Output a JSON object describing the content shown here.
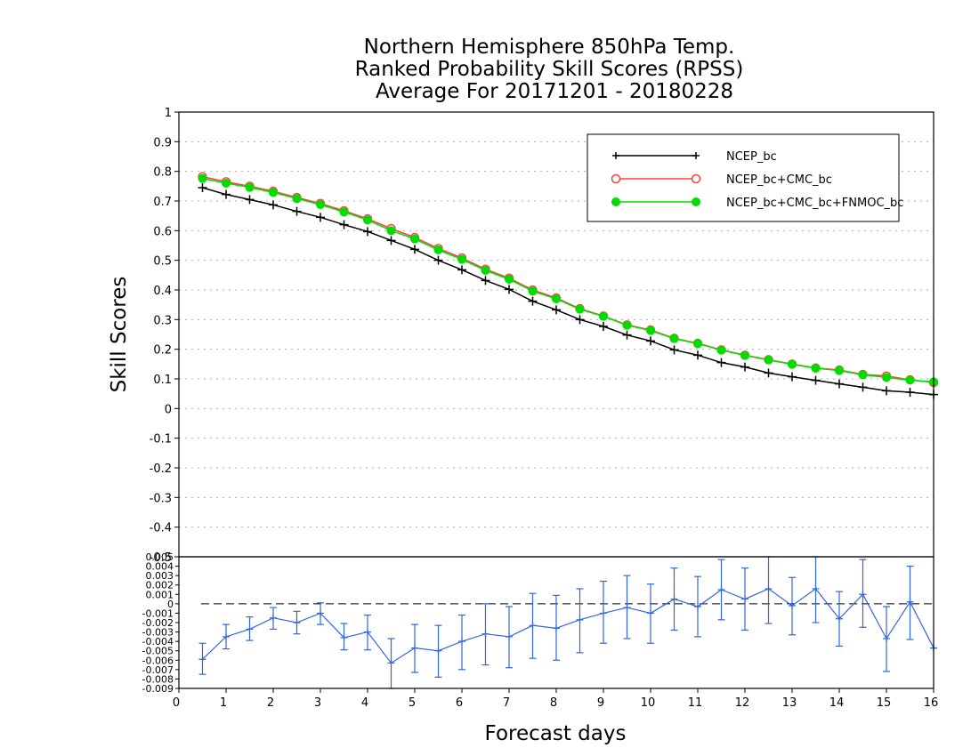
{
  "chart_data": [
    {
      "type": "line",
      "title": [
        "Northern Hemisphere 850hPa Temp.",
        "Ranked Probability Skill Scores (RPSS)",
        "Average For 20171201 - 20180228"
      ],
      "ylabel": "Skill Scores",
      "xlim": [
        0,
        16
      ],
      "ylim": [
        -0.5,
        1
      ],
      "yticks": [
        "1",
        "0.9",
        "0.8",
        "0.7",
        "0.6",
        "0.5",
        "0.4",
        "0.3",
        "0.2",
        "0.1",
        "0",
        "-0.1",
        "-0.2",
        "-0.3",
        "-0.4",
        "-0.5"
      ],
      "grid": true,
      "legend_position": "top-right",
      "x": [
        0.5,
        1,
        1.5,
        2,
        2.5,
        3,
        3.5,
        4,
        4.5,
        5,
        5.5,
        6,
        6.5,
        7,
        7.5,
        8,
        8.5,
        9,
        9.5,
        10,
        10.5,
        11,
        11.5,
        12,
        12.5,
        13,
        13.5,
        14,
        14.5,
        15,
        15.5,
        16
      ],
      "series": [
        {
          "name": "NCEP_bc",
          "color": "#000000",
          "marker": "plus",
          "values": [
            0.745,
            0.722,
            0.705,
            0.687,
            0.665,
            0.645,
            0.62,
            0.597,
            0.567,
            0.537,
            0.5,
            0.468,
            0.432,
            0.402,
            0.362,
            0.333,
            0.3,
            0.277,
            0.248,
            0.228,
            0.198,
            0.18,
            0.155,
            0.14,
            0.12,
            0.107,
            0.095,
            0.083,
            0.072,
            0.06,
            0.055,
            0.047
          ]
        },
        {
          "name": "NCEP_bc+CMC_bc",
          "color": "#ff4040",
          "marker": "open-circle",
          "values": [
            0.782,
            0.765,
            0.75,
            0.733,
            0.712,
            0.692,
            0.667,
            0.64,
            0.607,
            0.577,
            0.54,
            0.508,
            0.47,
            0.44,
            0.4,
            0.373,
            0.337,
            0.312,
            0.282,
            0.265,
            0.237,
            0.22,
            0.198,
            0.18,
            0.165,
            0.15,
            0.137,
            0.13,
            0.115,
            0.11,
            0.097,
            0.088
          ]
        },
        {
          "name": "NCEP_bc+CMC_bc+FNMOC_bc",
          "color": "#00dd00",
          "marker": "filled-circle",
          "values": [
            0.776,
            0.76,
            0.746,
            0.729,
            0.708,
            0.688,
            0.663,
            0.636,
            0.6,
            0.572,
            0.535,
            0.503,
            0.466,
            0.436,
            0.396,
            0.37,
            0.335,
            0.311,
            0.281,
            0.263,
            0.236,
            0.219,
            0.197,
            0.179,
            0.164,
            0.149,
            0.136,
            0.128,
            0.114,
            0.105,
            0.096,
            0.09
          ]
        }
      ]
    },
    {
      "type": "line",
      "xlabel": "Forecast days",
      "xlim": [
        0,
        16
      ],
      "ylim": [
        -0.009,
        0.005
      ],
      "xticks": [
        "0",
        "1",
        "2",
        "3",
        "4",
        "5",
        "6",
        "7",
        "8",
        "9",
        "10",
        "11",
        "12",
        "13",
        "14",
        "15",
        "16"
      ],
      "yticks": [
        "0.005",
        "0.004",
        "0.003",
        "0.002",
        "0.001",
        "0",
        "-0.001",
        "-0.002",
        "-0.003",
        "-0.004",
        "-0.005",
        "-0.006",
        "-0.007",
        "-0.008",
        "-0.009"
      ],
      "reference_line": 0,
      "color": "#3366dd",
      "x": [
        0.5,
        1,
        1.5,
        2,
        2.5,
        3,
        3.5,
        4,
        4.5,
        5,
        5.5,
        6,
        6.5,
        7,
        7.5,
        8,
        8.5,
        9,
        9.5,
        10,
        10.5,
        11,
        11.5,
        12,
        12.5,
        13,
        13.5,
        14,
        14.5,
        15,
        15.5,
        16
      ],
      "values": [
        -0.0059,
        -0.0035,
        -0.0027,
        -0.0015,
        -0.002,
        -0.001,
        -0.0036,
        -0.003,
        -0.0063,
        -0.0047,
        -0.005,
        -0.004,
        -0.0032,
        -0.0035,
        -0.0023,
        -0.0026,
        -0.0017,
        -0.001,
        -0.0004,
        -0.001,
        0.0005,
        -0.0003,
        0.0015,
        0.0005,
        0.0016,
        -0.0002,
        0.0016,
        -0.0016,
        0.001,
        -0.0037,
        0.0002,
        -0.0047
      ],
      "err_low": [
        -0.0075,
        -0.0048,
        -0.0039,
        -0.0027,
        -0.0032,
        -0.0022,
        -0.0049,
        -0.0049,
        -0.009,
        -0.0073,
        -0.0078,
        -0.007,
        -0.0065,
        -0.0068,
        -0.0058,
        -0.006,
        -0.0052,
        -0.0042,
        -0.0037,
        -0.0042,
        -0.0028,
        -0.0035,
        -0.0017,
        -0.0028,
        -0.0021,
        -0.0033,
        -0.002,
        -0.0045,
        -0.0025,
        -0.0072,
        -0.0038,
        -0.0047
      ],
      "err_high": [
        -0.0042,
        -0.0022,
        -0.0014,
        -0.0004,
        -0.0008,
        0.0001,
        -0.0021,
        -0.0012,
        -0.0037,
        -0.0022,
        -0.0023,
        -0.0012,
        0.0,
        -0.0003,
        0.0011,
        0.0009,
        0.0016,
        0.0024,
        0.003,
        0.0021,
        0.0038,
        0.0029,
        0.0047,
        0.0038,
        0.0055,
        0.0028,
        0.0053,
        0.0013,
        0.0047,
        -0.0003,
        0.004,
        -0.0047
      ]
    }
  ]
}
